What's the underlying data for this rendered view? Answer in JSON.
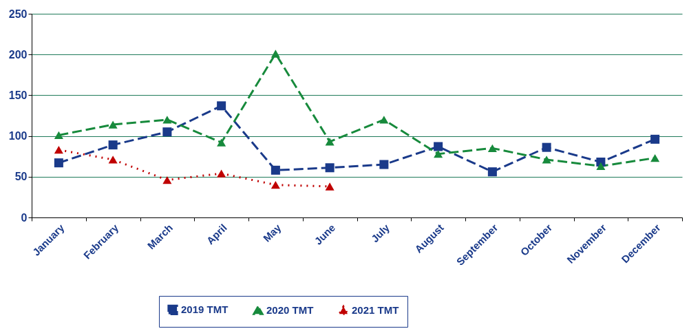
{
  "chart_data": {
    "type": "line",
    "categories": [
      "January",
      "February",
      "March",
      "April",
      "May",
      "June",
      "July",
      "August",
      "September",
      "October",
      "November",
      "December"
    ],
    "series": [
      {
        "name": "2019 TMT",
        "color": "#1a3a8a",
        "marker": "square",
        "line_style": "dashed",
        "values": [
          67,
          89,
          105,
          137,
          58,
          61,
          65,
          87,
          56,
          86,
          68,
          96
        ]
      },
      {
        "name": "2020 TMT",
        "color": "#178a3c",
        "marker": "triangle",
        "line_style": "dashed",
        "values": [
          101,
          114,
          120,
          92,
          201,
          93,
          120,
          78,
          85,
          71,
          63,
          73
        ]
      },
      {
        "name": "2021 TMT",
        "color": "#c00000",
        "marker": "triangle",
        "line_style": "dotted",
        "values": [
          83,
          71,
          46,
          54,
          40,
          38,
          null,
          null,
          null,
          null,
          null,
          null
        ]
      }
    ],
    "ylim": [
      0,
      250
    ],
    "yticks": [
      0,
      50,
      100,
      150,
      200,
      250
    ],
    "grid": "y",
    "legend": "bottom"
  }
}
